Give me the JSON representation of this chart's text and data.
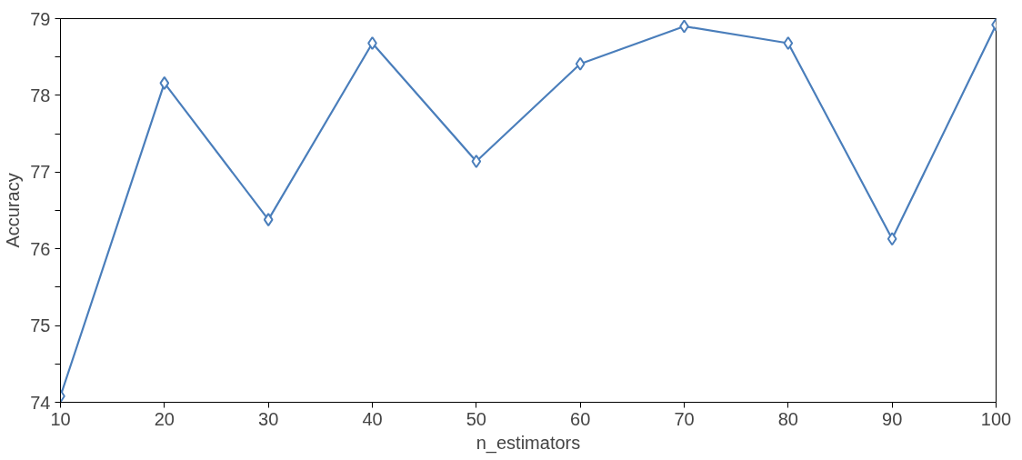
{
  "chart_data": {
    "type": "line",
    "xlabel": "n_estimators",
    "ylabel": "Accuracy",
    "x": [
      10,
      20,
      30,
      40,
      50,
      60,
      70,
      80,
      90,
      100
    ],
    "series": [
      {
        "color": "#4a7ebb",
        "values": [
          74.08,
          78.16,
          76.38,
          78.68,
          77.14,
          78.41,
          78.9,
          78.68,
          76.13,
          78.92
        ]
      }
    ],
    "xlim": [
      10,
      100
    ],
    "ylim": [
      74,
      79
    ],
    "xticks": [
      10,
      20,
      30,
      40,
      50,
      60,
      70,
      80,
      90,
      100
    ],
    "yticks": [
      74,
      {
        "value": 74.5,
        "label": null
      },
      75,
      {
        "value": 75.5,
        "label": null
      },
      76,
      {
        "value": 76.5,
        "label": null
      },
      77,
      {
        "value": 77.5,
        "label": null
      },
      78,
      {
        "value": 78.5,
        "label": null
      },
      79
    ],
    "grid": false,
    "marker": "diamond",
    "line_style": "solid"
  }
}
